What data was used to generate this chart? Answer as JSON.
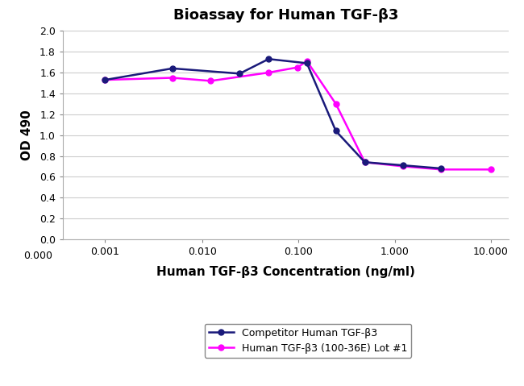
{
  "title": "Bioassay for Human TGF-β3",
  "xlabel": "Human TGF-β3 Concentration (ng/ml)",
  "ylabel": "OD 490",
  "ylim": [
    0.0,
    2.0
  ],
  "yticks": [
    0.0,
    0.2,
    0.4,
    0.6,
    0.8,
    1.0,
    1.2,
    1.4,
    1.6,
    1.8,
    2.0
  ],
  "xtick_vals": [
    0.000977,
    0.01,
    0.1,
    1.0,
    10.0
  ],
  "xtick_labels": [
    "0.001",
    "0.010",
    "0.100",
    "1.000",
    "10.000"
  ],
  "competitor_x": [
    0.000977,
    0.00488,
    0.0244,
    0.0488,
    0.122,
    0.244,
    0.488,
    1.22,
    3.05
  ],
  "competitor_y": [
    1.53,
    1.64,
    1.59,
    1.73,
    1.69,
    1.04,
    0.74,
    0.71,
    0.68
  ],
  "human_x": [
    0.000977,
    0.00488,
    0.0122,
    0.0488,
    0.0977,
    0.122,
    0.244,
    0.488,
    1.22,
    3.05,
    10.0
  ],
  "human_y": [
    1.53,
    1.55,
    1.52,
    1.6,
    1.65,
    1.71,
    1.3,
    0.74,
    0.7,
    0.67,
    0.67
  ],
  "competitor_color": "#1a1a7a",
  "human_color": "#ff00ff",
  "legend_labels": [
    "Competitor Human TGF-β3",
    "Human TGF-β3 (100-36E) Lot #1"
  ],
  "background_color": "#ffffff",
  "grid_color": "#cccccc",
  "title_fontsize": 13,
  "label_fontsize": 11,
  "tick_fontsize": 9,
  "legend_fontsize": 9
}
